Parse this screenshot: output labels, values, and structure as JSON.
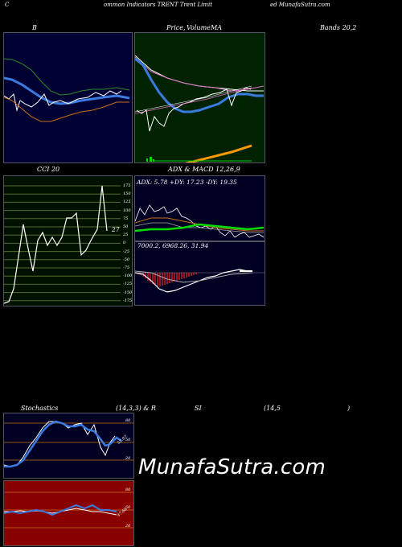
{
  "header": {
    "left": "C",
    "mid": "ommon  Indicators TRENT Trent Limit",
    "right": "ed MunafaSutra.com"
  },
  "titles": {
    "bollinger": "B",
    "price": "Price,",
    "volume": "Volume",
    "ma": "MA",
    "bands": "Bands 20,2",
    "cci": "CCI 20",
    "adx_macd": "ADX  & MACD 12,26,9",
    "stoch_left": "Stochastics",
    "stoch_params": "(14,3,3) & R",
    "rsi": "SI",
    "rsi_params": "(14,5",
    "rsi_close": ")"
  },
  "adx": {
    "readout": "ADX: 5.78  +DY: 17.23 -DY: 19.35"
  },
  "macd": {
    "readout": "7000.2,  6968.26,  31.94"
  },
  "cci": {
    "current": "27",
    "levels": [
      "175",
      "150",
      "125",
      "100",
      "75",
      "50",
      "25",
      "0",
      "-25",
      "-50",
      "-75",
      "-100",
      "-125",
      "-150",
      "-175"
    ]
  },
  "stoch": {
    "levels": [
      "80",
      "50",
      "20"
    ],
    "current": "52.97"
  },
  "rsi": {
    "levels": [
      "80",
      "50",
      "20"
    ],
    "current": "47.66"
  },
  "watermark": "MunafaSutra.com",
  "colors": {
    "bb_bg": "#000033",
    "price_bg": "#002200",
    "cci_bg": "#001100",
    "rsi_bg": "#880000"
  }
}
